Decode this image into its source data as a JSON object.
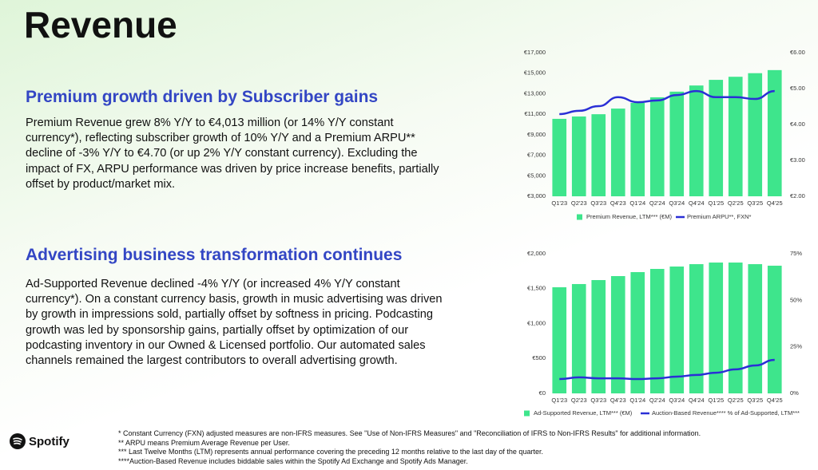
{
  "title": "Revenue",
  "sections": [
    {
      "heading": "Premium growth driven by Subscriber gains",
      "body": "Premium Revenue grew 8% Y/Y to €4,013 million (or 14% Y/Y constant currency*), reflecting subscriber growth of 10% Y/Y and a Premium ARPU** decline of -3% Y/Y to €4.70 (or up 2% Y/Y constant currency). Excluding the impact of FX, ARPU performance was driven by price increase benefits, partially offset by product/market mix."
    },
    {
      "heading": "Advertising business transformation continues",
      "body": "Ad-Supported Revenue declined -4% Y/Y (or increased 4% Y/Y constant currency*). On a constant currency basis, growth in music advertising was driven by growth in impressions sold, partially offset by softness in pricing. Podcasting growth was led by sponsorship gains, partially offset by optimization of our podcasting inventory in our Owned & Licensed portfolio. Our automated sales channels remained the largest contributors to overall advertising growth."
    }
  ],
  "footnotes": [
    "* Constant Currency (FXN) adjusted measures are non-IFRS measures. See \"Use of Non-IFRS Measures\" and \"Reconciliation of IFRS to Non-IFRS Results\" for additional information.",
    "** ARPU means Premium Average Revenue per User.",
    "*** Last Twelve Months (LTM) represents annual performance covering the preceding 12 months relative to the last day of the quarter.",
    "****Auction-Based Revenue includes biddable sales within the Spotify Ad Exchange and Spotify Ads Manager."
  ],
  "logo": "Spotify",
  "chart_data": [
    {
      "type": "combo",
      "categories": [
        "Q1'23",
        "Q2'23",
        "Q3'23",
        "Q4'23",
        "Q1'24",
        "Q2'24",
        "Q3'24",
        "Q4'24",
        "Q1'25",
        "Q2'25",
        "Q3'25",
        "Q4'25"
      ],
      "series": [
        {
          "name": "Premium Revenue, LTM*** (€M)",
          "type": "bar",
          "color": "#3ee58c",
          "values": [
            10550,
            10780,
            11000,
            11550,
            12100,
            12650,
            13200,
            13800,
            14350,
            14650,
            15000,
            15300
          ]
        },
        {
          "name": "Premium ARPU**, FXN*",
          "type": "line",
          "axis": "y2",
          "color": "#2a2fd6",
          "values": [
            4.29,
            4.38,
            4.51,
            4.76,
            4.62,
            4.67,
            4.82,
            4.93,
            4.76,
            4.76,
            4.71,
            4.93
          ]
        }
      ],
      "ylim": [
        3000,
        17000
      ],
      "yticks": [
        {
          "value": 3000,
          "label": "€3,000"
        },
        {
          "value": 5000,
          "label": "€5,000"
        },
        {
          "value": 7000,
          "label": "€7,000"
        },
        {
          "value": 9000,
          "label": "€9,000"
        },
        {
          "value": 11000,
          "label": "€11,000"
        },
        {
          "value": 13000,
          "label": "€13,000"
        },
        {
          "value": 15000,
          "label": "€15,000"
        },
        {
          "value": 17000,
          "label": "€17,000"
        }
      ],
      "y2lim": [
        2,
        6
      ],
      "y2ticks": [
        {
          "value": 2,
          "label": "€2.00"
        },
        {
          "value": 3,
          "label": "€3.00"
        },
        {
          "value": 4,
          "label": "€4.00"
        },
        {
          "value": 5,
          "label": "€5.00"
        },
        {
          "value": 6,
          "label": "€6.00"
        }
      ],
      "grid": false
    },
    {
      "type": "combo",
      "categories": [
        "Q1'23",
        "Q2'23",
        "Q3'23",
        "Q4'23",
        "Q1'24",
        "Q2'24",
        "Q3'24",
        "Q4'24",
        "Q1'25",
        "Q2'25",
        "Q3'25",
        "Q4'25"
      ],
      "series": [
        {
          "name": "Ad-Supported Revenue, LTM*** (€M)",
          "type": "bar",
          "color": "#3ee58c",
          "values": [
            1520,
            1566,
            1623,
            1680,
            1737,
            1783,
            1817,
            1851,
            1874,
            1874,
            1851,
            1829
          ]
        },
        {
          "name": "Auction-Based Revenue**** % of Ad-Supported, LTM***",
          "type": "line",
          "axis": "y2",
          "color": "#2a2fd6",
          "values": [
            7.7,
            8.6,
            8.1,
            8.1,
            7.7,
            8.1,
            9,
            9.9,
            11.1,
            12.9,
            15,
            18
          ]
        }
      ],
      "ylim": [
        0,
        2000
      ],
      "yticks": [
        {
          "value": 0,
          "label": "€0"
        },
        {
          "value": 500,
          "label": "€500"
        },
        {
          "value": 1000,
          "label": "€1,000"
        },
        {
          "value": 1500,
          "label": "€1,500"
        },
        {
          "value": 2000,
          "label": "€2,000"
        }
      ],
      "y2lim": [
        0,
        75
      ],
      "y2ticks": [
        {
          "value": 0,
          "label": "0%"
        },
        {
          "value": 25,
          "label": "25%"
        },
        {
          "value": 50,
          "label": "50%"
        },
        {
          "value": 75,
          "label": "75%"
        }
      ],
      "grid": false
    }
  ]
}
